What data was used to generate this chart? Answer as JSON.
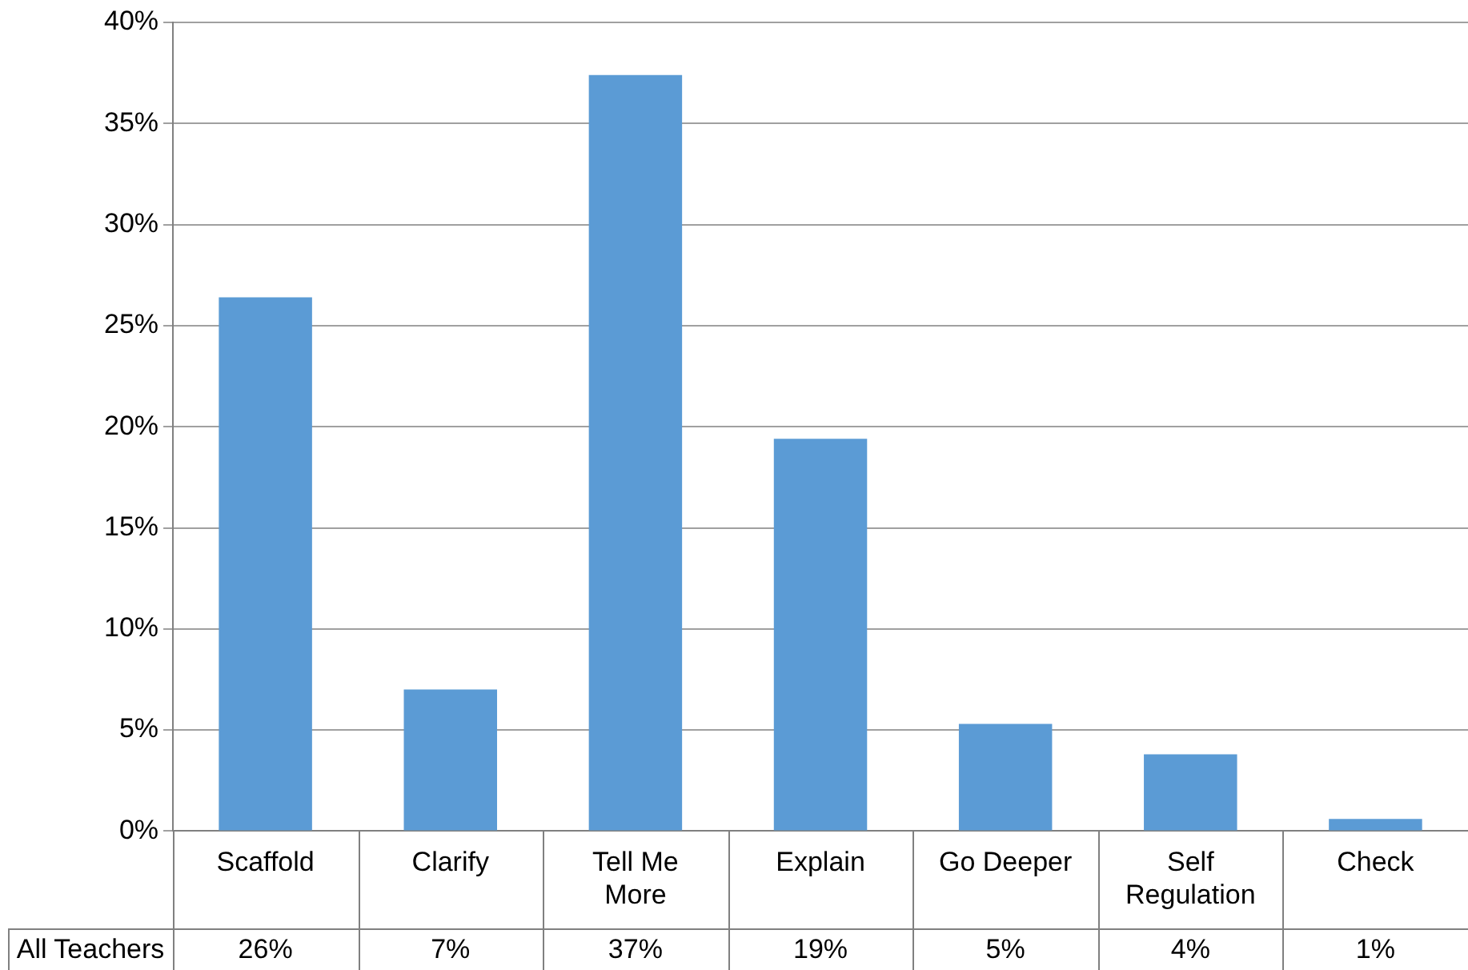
{
  "chart_data": {
    "type": "bar",
    "categories": [
      "Scaffold",
      "Clarify",
      "Tell Me More",
      "Explain",
      "Go Deeper",
      "Self Regulation",
      "Check"
    ],
    "series": [
      {
        "name": "All Teachers",
        "color": "#5b9bd5",
        "values": [
          26.4,
          7,
          37.4,
          19.4,
          5.3,
          3.8,
          0.6
        ],
        "value_labels": [
          "26%",
          "7%",
          "37%",
          "19%",
          "5%",
          "4%",
          "1%"
        ]
      }
    ],
    "ylim": [
      0,
      40
    ],
    "yticks": [
      {
        "value": 0,
        "label": "0%"
      },
      {
        "value": 5,
        "label": "5%"
      },
      {
        "value": 10,
        "label": "10%"
      },
      {
        "value": 15,
        "label": "15%"
      },
      {
        "value": 20,
        "label": "20%"
      },
      {
        "value": 25,
        "label": "25%"
      },
      {
        "value": 30,
        "label": "30%"
      },
      {
        "value": 35,
        "label": "35%"
      },
      {
        "value": 40,
        "label": "40%"
      }
    ],
    "grid": "y"
  }
}
